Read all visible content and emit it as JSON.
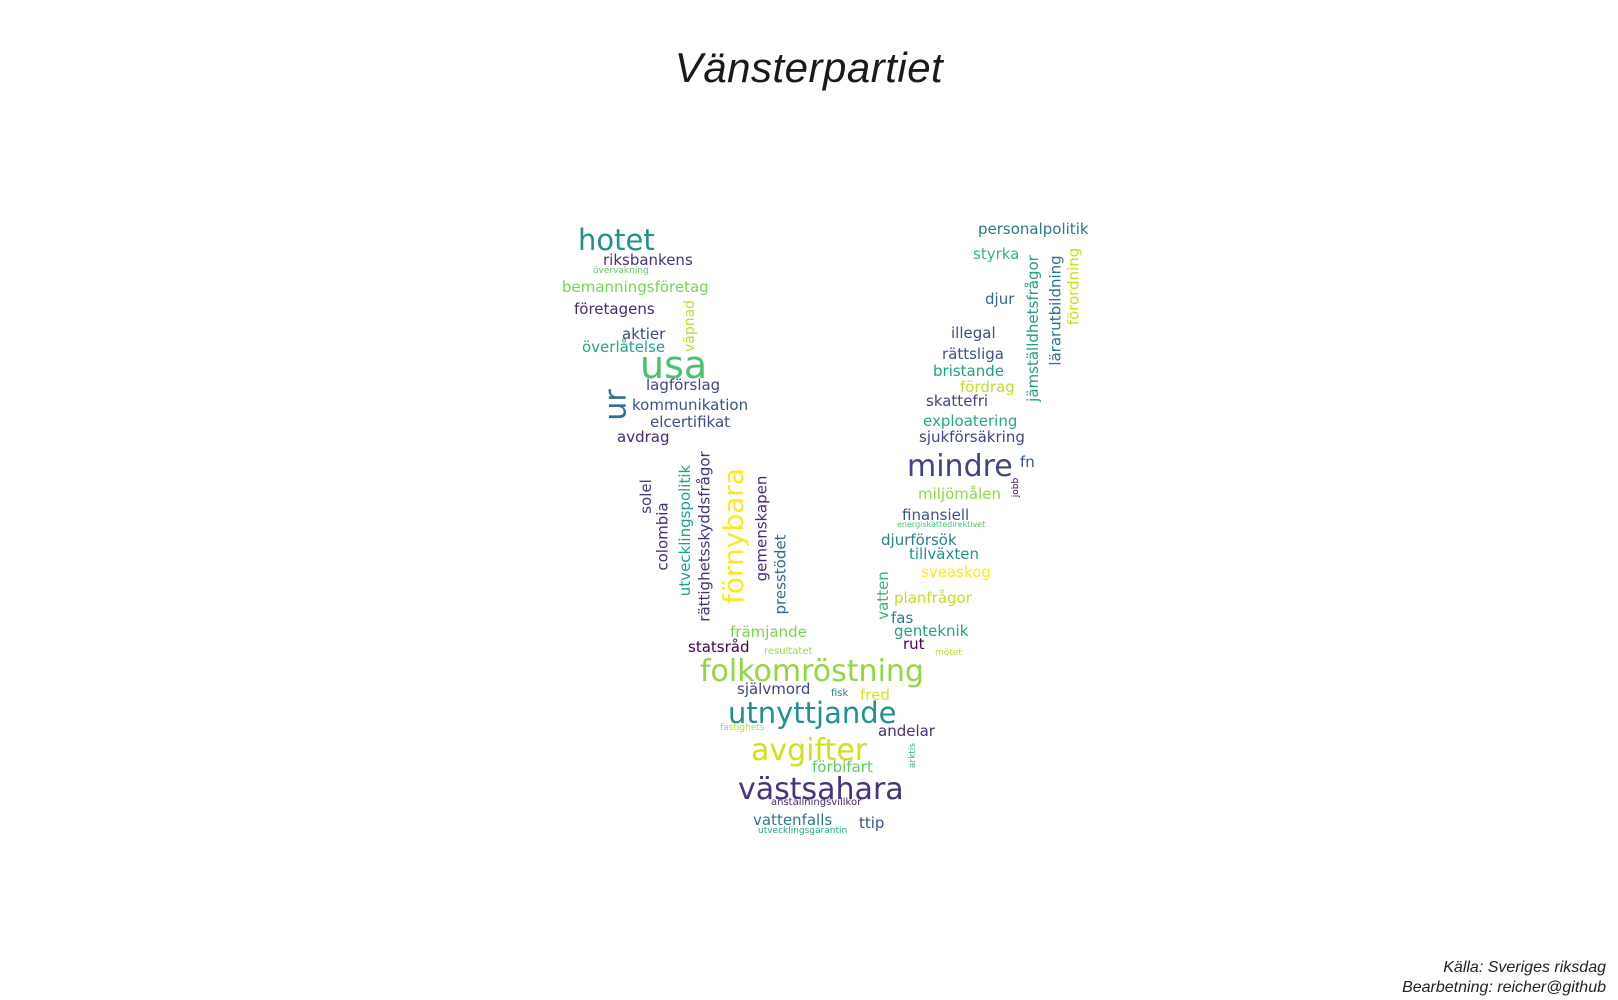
{
  "title": "Vänsterpartiet",
  "source": {
    "line1": "Källa: Sveriges riksdag",
    "line2": "Bearbetning: reicher@github"
  },
  "words": [
    {
      "text": "hotet",
      "color": "#21918c"
    },
    {
      "text": "riksbankens",
      "color": "#46327e"
    },
    {
      "text": "övervakning",
      "color": "#5ec962"
    },
    {
      "text": "bemanningsföretag",
      "color": "#7ad151"
    },
    {
      "text": "företagens",
      "color": "#482878"
    },
    {
      "text": "aktier",
      "color": "#3e4a89"
    },
    {
      "text": "överlåtelse",
      "color": "#21a685"
    },
    {
      "text": "väpnad",
      "color": "#bddf26"
    },
    {
      "text": "usa",
      "color": "#4ac16d"
    },
    {
      "text": "ur",
      "color": "#2c728e"
    },
    {
      "text": "lagförslag",
      "color": "#414487"
    },
    {
      "text": "kommunikation",
      "color": "#3b528b"
    },
    {
      "text": "elcertifikat",
      "color": "#3e4a89"
    },
    {
      "text": "avdrag",
      "color": "#482475"
    },
    {
      "text": "solel",
      "color": "#443983"
    },
    {
      "text": "colombia",
      "color": "#472d7b"
    },
    {
      "text": "utvecklingspolitik",
      "color": "#1fa187"
    },
    {
      "text": "rättighetsskyddsfrågor",
      "color": "#46327e"
    },
    {
      "text": "förnybara",
      "color": "#fde725"
    },
    {
      "text": "gemenskapen",
      "color": "#482878"
    },
    {
      "text": "presstödet",
      "color": "#31688e"
    },
    {
      "text": "främjande",
      "color": "#7ad151"
    },
    {
      "text": "statsråd",
      "color": "#440154"
    },
    {
      "text": "resultatet",
      "color": "#a0da39"
    },
    {
      "text": "folkomröstning",
      "color": "#8fd744"
    },
    {
      "text": "självmord",
      "color": "#414487"
    },
    {
      "text": "fisk",
      "color": "#2a788e"
    },
    {
      "text": "fred",
      "color": "#dde318"
    },
    {
      "text": "utnyttjande",
      "color": "#21918c"
    },
    {
      "text": "fastighets",
      "color": "#addc30"
    },
    {
      "text": "andelar",
      "color": "#472c7a"
    },
    {
      "text": "avgifter",
      "color": "#d0e11c"
    },
    {
      "text": "förbifart",
      "color": "#5ec962"
    },
    {
      "text": "arktis",
      "color": "#35b779"
    },
    {
      "text": "västsahara",
      "color": "#46327e"
    },
    {
      "text": "anställningsvillkor",
      "color": "#482878"
    },
    {
      "text": "vattenfalls",
      "color": "#2a788e"
    },
    {
      "text": "ttip",
      "color": "#3b528b"
    },
    {
      "text": "utvecklingsgarantin",
      "color": "#22a884"
    },
    {
      "text": "personalpolitik",
      "color": "#2a788e"
    },
    {
      "text": "styrka",
      "color": "#35b779"
    },
    {
      "text": "jämställdhetsfrågor",
      "color": "#1f9e89"
    },
    {
      "text": "lärarutbildning",
      "color": "#2c728e"
    },
    {
      "text": "förordning",
      "color": "#c8e020"
    },
    {
      "text": "djur",
      "color": "#31688e"
    },
    {
      "text": "illegal",
      "color": "#3e4a89"
    },
    {
      "text": "rättsliga",
      "color": "#3b528b"
    },
    {
      "text": "bristande",
      "color": "#1fa187"
    },
    {
      "text": "fördrag",
      "color": "#bddf26"
    },
    {
      "text": "skattefri",
      "color": "#414487"
    },
    {
      "text": "exploatering",
      "color": "#23a983"
    },
    {
      "text": "sjukförsäkring",
      "color": "#404688"
    },
    {
      "text": "mindre",
      "color": "#414487"
    },
    {
      "text": "fn",
      "color": "#3b528b"
    },
    {
      "text": "jobb",
      "color": "#440154"
    },
    {
      "text": "miljömålen",
      "color": "#8fd744"
    },
    {
      "text": "finansiell",
      "color": "#3b528b"
    },
    {
      "text": "energiskattedirektivet",
      "color": "#4ac16d"
    },
    {
      "text": "djurförsök",
      "color": "#277f8e"
    },
    {
      "text": "tillväxten",
      "color": "#21918c"
    },
    {
      "text": "sveaskog",
      "color": "#fde725"
    },
    {
      "text": "vatten",
      "color": "#35b779"
    },
    {
      "text": "planfrågor",
      "color": "#c2df23"
    },
    {
      "text": "fas",
      "color": "#2a788e"
    },
    {
      "text": "genteknik",
      "color": "#1fa187"
    },
    {
      "text": "rut",
      "color": "#440154"
    },
    {
      "text": "mötet",
      "color": "#b5de2b"
    }
  ]
}
